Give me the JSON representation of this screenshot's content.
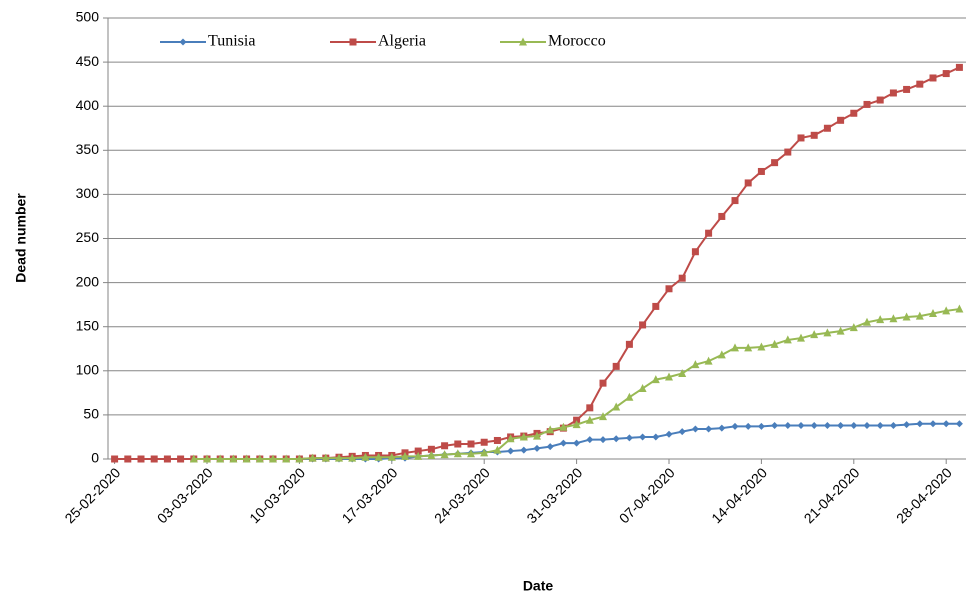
{
  "chart_data": {
    "type": "line",
    "x_label": "Date",
    "y_label": "Dead number",
    "x": [
      "25-02-2020",
      "26-02-2020",
      "27-02-2020",
      "28-02-2020",
      "29-02-2020",
      "01-03-2020",
      "02-03-2020",
      "03-03-2020",
      "04-03-2020",
      "05-03-2020",
      "06-03-2020",
      "07-03-2020",
      "08-03-2020",
      "09-03-2020",
      "10-03-2020",
      "11-03-2020",
      "12-03-2020",
      "13-03-2020",
      "14-03-2020",
      "15-03-2020",
      "16-03-2020",
      "17-03-2020",
      "18-03-2020",
      "19-03-2020",
      "20-03-2020",
      "21-03-2020",
      "22-03-2020",
      "23-03-2020",
      "24-03-2020",
      "25-03-2020",
      "26-03-2020",
      "27-03-2020",
      "28-03-2020",
      "29-03-2020",
      "30-03-2020",
      "31-03-2020",
      "01-04-2020",
      "02-04-2020",
      "03-04-2020",
      "04-04-2020",
      "05-04-2020",
      "06-04-2020",
      "07-04-2020",
      "08-04-2020",
      "09-04-2020",
      "10-04-2020",
      "11-04-2020",
      "12-04-2020",
      "13-04-2020",
      "14-04-2020",
      "15-04-2020",
      "16-04-2020",
      "17-04-2020",
      "18-04-2020",
      "19-04-2020",
      "20-04-2020",
      "21-04-2020",
      "22-04-2020",
      "23-04-2020",
      "24-04-2020",
      "25-04-2020",
      "26-04-2020",
      "27-04-2020",
      "28-04-2020",
      "29-04-2020"
    ],
    "xticks": [
      "25-02-2020",
      "03-03-2020",
      "10-03-2020",
      "17-03-2020",
      "24-03-2020",
      "31-03-2020",
      "07-04-2020",
      "14-04-2020",
      "21-04-2020",
      "28-04-2020"
    ],
    "ylim": [
      0,
      500
    ],
    "yticks": [
      0,
      50,
      100,
      150,
      200,
      250,
      300,
      350,
      400,
      450,
      500
    ],
    "grid": true,
    "legend": "top",
    "series": [
      {
        "name": "Tunisia",
        "color": "#4a7ebb",
        "marker": "diamond",
        "values": [
          null,
          null,
          null,
          null,
          null,
          null,
          0,
          0,
          0,
          0,
          0,
          0,
          0,
          0,
          0,
          0,
          0,
          0,
          0,
          0,
          0,
          1,
          1,
          3,
          4,
          5,
          6,
          7,
          8,
          8,
          9,
          10,
          12,
          14,
          18,
          18,
          22,
          22,
          23,
          24,
          25,
          25,
          28,
          31,
          34,
          34,
          35,
          37,
          37,
          37,
          38,
          38,
          38,
          38,
          38,
          38,
          38,
          38,
          38,
          38,
          39,
          40,
          40,
          40,
          40
        ]
      },
      {
        "name": "Algeria",
        "color": "#be4b48",
        "marker": "square",
        "values": [
          0,
          0,
          0,
          0,
          0,
          0,
          0,
          0,
          0,
          0,
          0,
          0,
          0,
          0,
          0,
          1,
          1,
          2,
          3,
          4,
          4,
          4,
          7,
          9,
          11,
          15,
          17,
          17,
          19,
          21,
          25,
          26,
          29,
          31,
          35,
          44,
          58,
          86,
          105,
          130,
          152,
          173,
          193,
          205,
          235,
          256,
          275,
          293,
          313,
          326,
          336,
          348,
          364,
          367,
          375,
          384,
          392,
          402,
          407,
          415,
          419,
          425,
          432,
          437,
          444
        ]
      },
      {
        "name": "Morocco",
        "color": "#98b954",
        "marker": "triangle",
        "values": [
          null,
          null,
          null,
          null,
          null,
          null,
          0,
          0,
          0,
          0,
          0,
          0,
          0,
          0,
          0,
          1,
          1,
          1,
          1,
          2,
          2,
          2,
          3,
          3,
          4,
          5,
          6,
          6,
          7,
          10,
          23,
          25,
          26,
          33,
          36,
          39,
          44,
          48,
          59,
          70,
          80,
          90,
          93,
          97,
          107,
          111,
          118,
          126,
          126,
          127,
          130,
          135,
          137,
          141,
          143,
          145,
          149,
          155,
          158,
          159,
          161,
          162,
          165,
          168,
          170
        ]
      }
    ]
  }
}
